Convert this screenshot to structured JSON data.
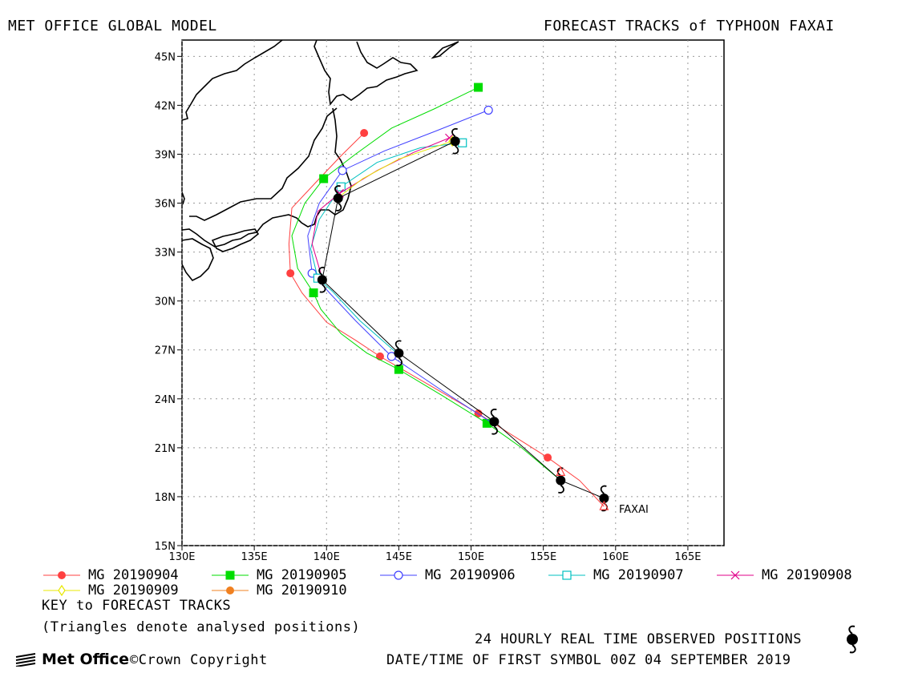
{
  "header": {
    "left": "MET OFFICE GLOBAL MODEL",
    "right": "FORECAST TRACKS of TYPHOON FAXAI"
  },
  "map": {
    "lon_range": [
      130,
      167.5
    ],
    "lat_range": [
      15,
      46
    ],
    "x_ticks": [
      "130E",
      "135E",
      "140E",
      "145E",
      "150E",
      "155E",
      "160E",
      "165E"
    ],
    "x_tick_values": [
      130,
      135,
      140,
      145,
      150,
      155,
      160,
      165
    ],
    "y_ticks": [
      "15N",
      "18N",
      "21N",
      "24N",
      "27N",
      "30N",
      "33N",
      "36N",
      "39N",
      "42N",
      "45N"
    ],
    "y_tick_values": [
      15,
      18,
      21,
      24,
      27,
      30,
      33,
      36,
      39,
      42,
      45
    ],
    "storm_label": "FAXAI"
  },
  "chart_data": {
    "type": "scatter",
    "title": "FORECAST TRACKS of TYPHOON FAXAI",
    "series": [
      {
        "name": "MG 20190904",
        "color": "#ff4040",
        "marker": "filled-circle",
        "points": [
          [
            159.2,
            17.4
          ],
          [
            157.5,
            19.0
          ],
          [
            155.3,
            20.4
          ],
          [
            152.8,
            21.8
          ],
          [
            150.5,
            23.1
          ],
          [
            147.0,
            24.9
          ],
          [
            143.7,
            26.6
          ],
          [
            142.0,
            27.6
          ],
          [
            140.0,
            28.7
          ],
          [
            138.3,
            30.5
          ],
          [
            137.5,
            31.7
          ],
          [
            137.4,
            33.5
          ],
          [
            137.6,
            35.7
          ],
          [
            139.5,
            37.5
          ],
          [
            141.0,
            38.9
          ],
          [
            142.6,
            40.3
          ]
        ],
        "symbols": [
          [
            155.3,
            20.4
          ],
          [
            150.5,
            23.1
          ],
          [
            143.7,
            26.6
          ],
          [
            137.5,
            31.7
          ],
          [
            142.6,
            40.3
          ]
        ]
      },
      {
        "name": "MG 20190905",
        "color": "#00dd00",
        "marker": "filled-square",
        "points": [
          [
            156.2,
            19.0
          ],
          [
            153.5,
            21.0
          ],
          [
            151.1,
            22.5
          ],
          [
            148.0,
            24.2
          ],
          [
            145.0,
            25.8
          ],
          [
            142.8,
            26.8
          ],
          [
            141.0,
            28.0
          ],
          [
            139.6,
            29.5
          ],
          [
            139.1,
            30.5
          ],
          [
            138.0,
            32.0
          ],
          [
            137.6,
            34.0
          ],
          [
            138.5,
            36.0
          ],
          [
            139.8,
            37.5
          ],
          [
            142.0,
            39.0
          ],
          [
            144.5,
            40.6
          ],
          [
            147.5,
            41.8
          ],
          [
            150.5,
            43.1
          ]
        ],
        "symbols": [
          [
            151.1,
            22.5
          ],
          [
            145.0,
            25.8
          ],
          [
            139.1,
            30.5
          ],
          [
            139.8,
            37.5
          ],
          [
            150.5,
            43.1
          ]
        ]
      },
      {
        "name": "MG 20190906",
        "color": "#4040ff",
        "marker": "open-circle",
        "points": [
          [
            151.5,
            22.5
          ],
          [
            148.0,
            24.5
          ],
          [
            144.5,
            26.6
          ],
          [
            142.0,
            28.8
          ],
          [
            140.2,
            30.5
          ],
          [
            139.0,
            31.7
          ],
          [
            138.7,
            34.0
          ],
          [
            139.5,
            36.0
          ],
          [
            141.1,
            38.0
          ],
          [
            144.0,
            39.2
          ],
          [
            147.5,
            40.4
          ],
          [
            151.2,
            41.7
          ]
        ],
        "symbols": [
          [
            144.5,
            26.6
          ],
          [
            139.0,
            31.7
          ],
          [
            141.1,
            38.0
          ],
          [
            151.2,
            41.7
          ]
        ]
      },
      {
        "name": "MG 20190907",
        "color": "#00c0c0",
        "marker": "open-square",
        "points": [
          [
            145.0,
            26.7
          ],
          [
            142.3,
            28.8
          ],
          [
            140.4,
            30.6
          ],
          [
            139.4,
            31.4
          ],
          [
            138.9,
            33.2
          ],
          [
            139.5,
            35.0
          ],
          [
            141.0,
            37.0
          ],
          [
            143.5,
            38.5
          ],
          [
            146.5,
            39.4
          ],
          [
            149.4,
            39.7
          ]
        ],
        "symbols": [
          [
            139.4,
            31.4
          ],
          [
            141.0,
            37.0
          ],
          [
            149.4,
            39.7
          ]
        ]
      },
      {
        "name": "MG 20190908",
        "color": "#e0008a",
        "marker": "cross",
        "points": [
          [
            139.7,
            31.4
          ],
          [
            139.0,
            33.5
          ],
          [
            139.4,
            35.5
          ],
          [
            140.9,
            36.6
          ],
          [
            143.5,
            38.0
          ],
          [
            146.0,
            39.1
          ],
          [
            148.5,
            40.0
          ]
        ],
        "symbols": [
          [
            140.9,
            36.6
          ],
          [
            148.5,
            40.0
          ]
        ]
      },
      {
        "name": "MG 20190909",
        "color": "#e8e800",
        "marker": "open-diamond",
        "points": [
          [
            140.9,
            36.4
          ],
          [
            142.5,
            37.5
          ],
          [
            145.0,
            38.7
          ],
          [
            148.7,
            39.8
          ]
        ],
        "symbols": [
          [
            148.7,
            39.8
          ]
        ]
      },
      {
        "name": "MG 20190910",
        "color": "#f08020",
        "marker": "filled-circle",
        "points": [
          [
            148.9,
            39.8
          ]
        ],
        "symbols": [
          [
            148.9,
            39.8
          ]
        ]
      }
    ],
    "observed_track": [
      [
        159.2,
        17.9
      ],
      [
        156.2,
        19.0
      ],
      [
        151.6,
        22.6
      ],
      [
        145.0,
        26.8
      ],
      [
        139.7,
        31.3
      ],
      [
        140.8,
        36.3
      ],
      [
        148.9,
        39.8
      ]
    ],
    "analysed_triangles": [
      [
        159.2,
        17.4
      ],
      [
        156.2,
        19.5
      ]
    ]
  },
  "legend": {
    "items": [
      {
        "label": "MG 20190904",
        "color": "#ff4040",
        "marker": "filled-circle"
      },
      {
        "label": "MG 20190905",
        "color": "#00dd00",
        "marker": "filled-square"
      },
      {
        "label": "MG 20190906",
        "color": "#4040ff",
        "marker": "open-circle"
      },
      {
        "label": "MG 20190907",
        "color": "#00c0c0",
        "marker": "open-square"
      },
      {
        "label": "MG 20190908",
        "color": "#e0008a",
        "marker": "cross"
      },
      {
        "label": "MG 20190909",
        "color": "#e8e800",
        "marker": "open-diamond"
      },
      {
        "label": "MG 20190910",
        "color": "#f08020",
        "marker": "filled-circle"
      }
    ]
  },
  "notes": {
    "key": "KEY to FORECAST TRACKS",
    "triangles": "(Triangles denote analysed positions)",
    "observed": "24 HOURLY REAL TIME OBSERVED POSITIONS",
    "datetime": "DATE/TIME OF FIRST SYMBOL 00Z 04 SEPTEMBER 2019"
  },
  "footer": {
    "logo": "Met Office",
    "copyright": "©Crown Copyright"
  }
}
